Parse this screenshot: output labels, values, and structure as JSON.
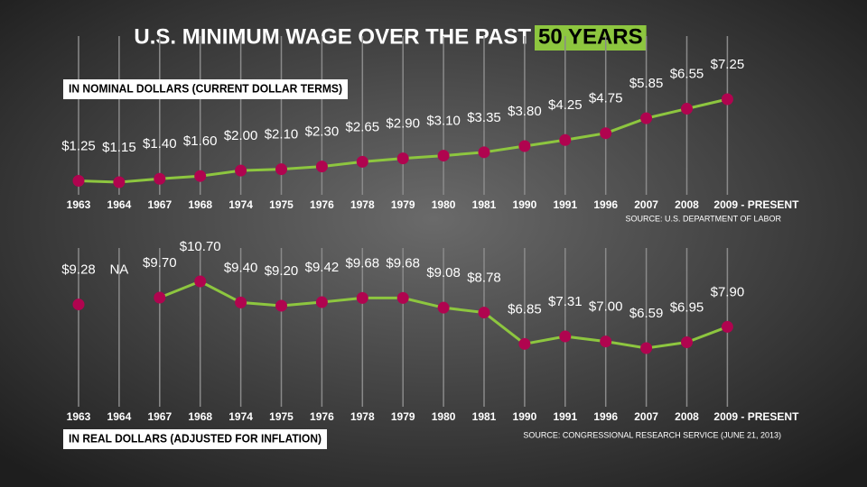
{
  "title": {
    "text": "U.S. MINIMUM WAGE OVER THE PAST",
    "highlight": "50 YEARS"
  },
  "chart_data": [
    {
      "type": "line",
      "subtitle": "IN NOMINAL DOLLARS (CURRENT DOLLAR TERMS)",
      "source": "SOURCE: U.S. DEPARTMENT OF LABOR",
      "categories": [
        "1963",
        "1964",
        "1967",
        "1968",
        "1974",
        "1975",
        "1976",
        "1978",
        "1979",
        "1980",
        "1981",
        "1990",
        "1991",
        "1996",
        "2007",
        "2008",
        "2009 - PRESENT"
      ],
      "values": [
        1.25,
        1.15,
        1.4,
        1.6,
        2.0,
        2.1,
        2.3,
        2.65,
        2.9,
        3.1,
        3.35,
        3.8,
        4.25,
        4.75,
        5.85,
        6.55,
        7.25
      ],
      "value_labels": [
        "$1.25",
        "$1.15",
        "$1.40",
        "$1.60",
        "$2.00",
        "$2.10",
        "$2.30",
        "$2.65",
        "$2.90",
        "$3.10",
        "$3.35",
        "$3.80",
        "$4.25",
        "$4.75",
        "$5.85",
        "$6.55",
        "$7.25"
      ],
      "color": "#8dc63f",
      "marker_color": "#b0044f"
    },
    {
      "type": "line",
      "subtitle": "IN REAL DOLLARS (ADJUSTED FOR INFLATION)",
      "source": "SOURCE: CONGRESSIONAL RESEARCH SERVICE (JUNE 21, 2013)",
      "categories": [
        "1963",
        "1964",
        "1967",
        "1968",
        "1974",
        "1975",
        "1976",
        "1978",
        "1979",
        "1980",
        "1981",
        "1990",
        "1991",
        "1996",
        "2007",
        "2008",
        "2009 - PRESENT"
      ],
      "values": [
        9.28,
        null,
        9.7,
        10.7,
        9.4,
        9.2,
        9.42,
        9.68,
        9.68,
        9.08,
        8.78,
        6.85,
        7.31,
        7.0,
        6.59,
        6.95,
        7.9
      ],
      "value_labels": [
        "$9.28",
        "NA",
        "$9.70",
        "$10.70",
        "$9.40",
        "$9.20",
        "$9.42",
        "$9.68",
        "$9.68",
        "$9.08",
        "$8.78",
        "$6.85",
        "$7.31",
        "$7.00",
        "$6.59",
        "$6.95",
        "$7.90"
      ],
      "color": "#8dc63f",
      "marker_color": "#b0044f"
    }
  ]
}
